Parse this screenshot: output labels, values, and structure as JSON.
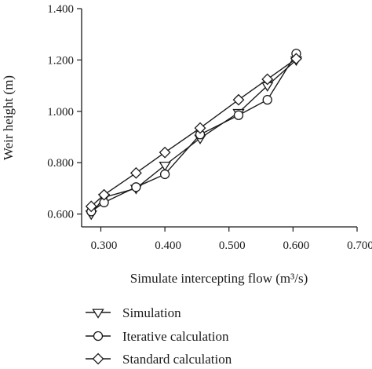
{
  "chart_data": {
    "type": "line",
    "title": "",
    "xlabel": "Simulate intercepting flow (m³/s)",
    "ylabel": "Weir height (m)",
    "xlim": [
      0.27,
      0.7
    ],
    "ylim": [
      0.55,
      1.4
    ],
    "x_ticks": [
      0.3,
      0.4,
      0.5,
      0.6,
      0.7
    ],
    "x_tick_labels": [
      "0.300",
      "0.400",
      "0.500",
      "0.600",
      "0.700"
    ],
    "y_ticks": [
      0.6,
      0.8,
      1.0,
      1.2,
      1.4
    ],
    "y_tick_labels": [
      "0.600",
      "0.800",
      "1.000",
      "1.200",
      "1.400"
    ],
    "grid": false,
    "legend_position": "bottom-left",
    "series": [
      {
        "name": "Simulation",
        "marker": "triangle-down",
        "x": [
          0.285,
          0.305,
          0.355,
          0.4,
          0.455,
          0.515,
          0.56,
          0.605
        ],
        "y": [
          0.6,
          0.665,
          0.7,
          0.79,
          0.895,
          0.995,
          1.1,
          1.2
        ]
      },
      {
        "name": "Iterative calculation",
        "marker": "circle",
        "x": [
          0.285,
          0.305,
          0.355,
          0.4,
          0.455,
          0.515,
          0.56,
          0.605
        ],
        "y": [
          0.61,
          0.645,
          0.705,
          0.755,
          0.91,
          0.985,
          1.045,
          1.225
        ]
      },
      {
        "name": "Standard calculation",
        "marker": "diamond",
        "x": [
          0.285,
          0.305,
          0.355,
          0.4,
          0.455,
          0.515,
          0.56,
          0.605
        ],
        "y": [
          0.63,
          0.675,
          0.76,
          0.84,
          0.935,
          1.045,
          1.125,
          1.205
        ]
      }
    ]
  },
  "colors": {
    "line": "#1a1a1a",
    "marker_fill": "#ffffff"
  }
}
